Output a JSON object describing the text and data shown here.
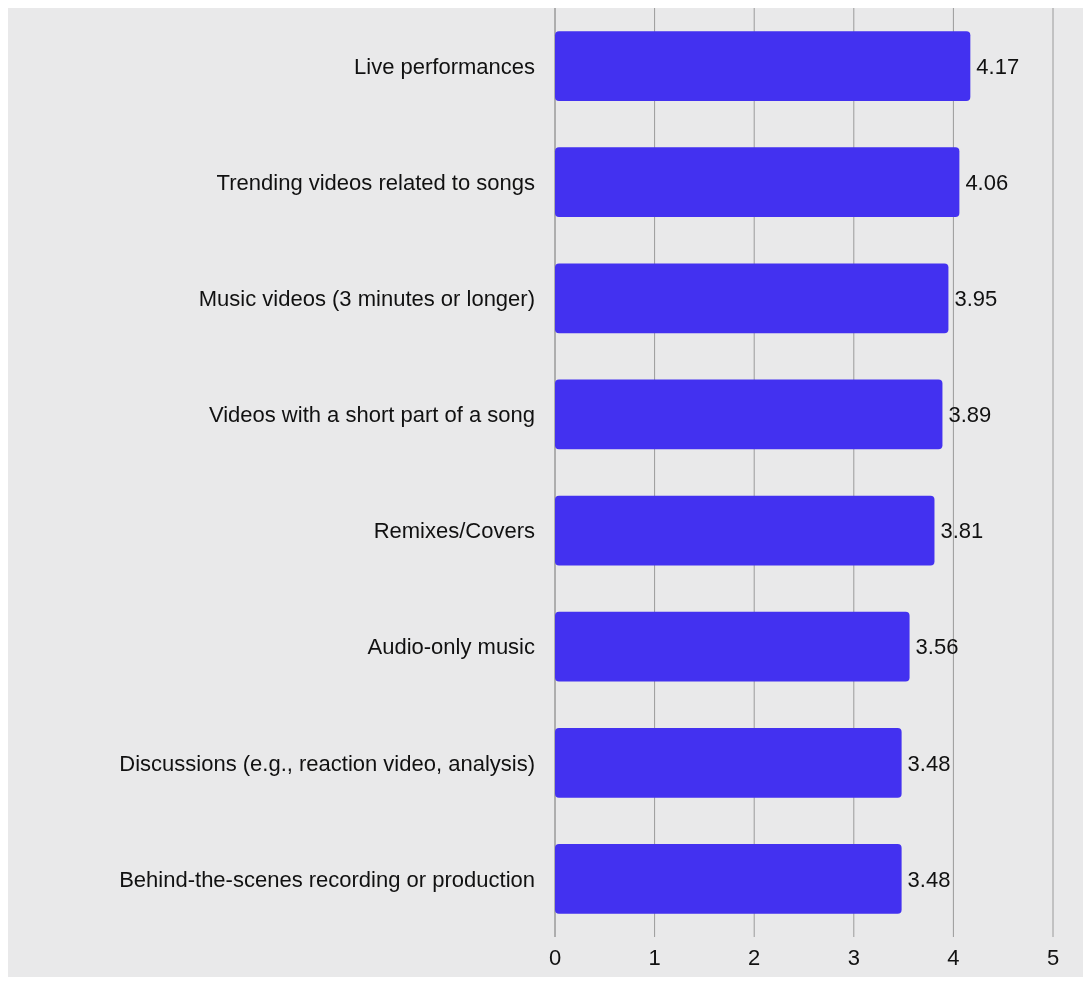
{
  "chart_data": {
    "type": "bar",
    "orientation": "horizontal",
    "categories": [
      "Live performances",
      "Trending videos related to songs",
      "Music videos (3 minutes or longer)",
      "Videos with a short part of a song",
      "Remixes/Covers",
      "Audio-only music",
      "Discussions (e.g., reaction video, analysis)",
      "Behind-the-scenes recording or production"
    ],
    "values": [
      4.17,
      4.06,
      3.95,
      3.89,
      3.81,
      3.56,
      3.48,
      3.48
    ],
    "color": "#4331f0",
    "xlim": [
      0,
      5
    ],
    "xticks": [
      0,
      1,
      2,
      3,
      4,
      5
    ],
    "grid": "x",
    "data_labels": true
  }
}
